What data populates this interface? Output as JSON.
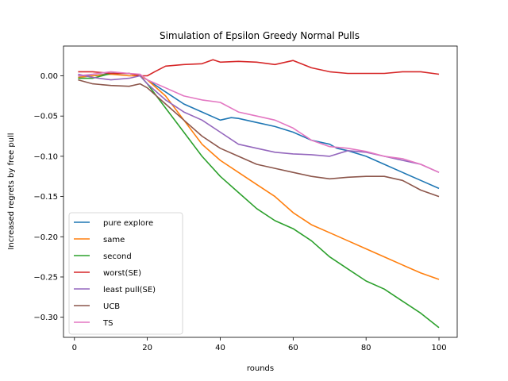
{
  "chart_data": {
    "type": "line",
    "title": "Simulation of Epsilon Greedy Normal Pulls",
    "xlabel": "rounds",
    "ylabel": "Increased regrets by free pull",
    "xlim": [
      -3,
      105
    ],
    "ylim": [
      -0.325,
      0.037
    ],
    "xticks": [
      0,
      20,
      40,
      60,
      80,
      100
    ],
    "yticks": [
      0.0,
      -0.05,
      -0.1,
      -0.15,
      -0.2,
      -0.25,
      -0.3
    ],
    "ytick_labels": [
      "0.00",
      "−0.05",
      "−0.10",
      "−0.15",
      "−0.20",
      "−0.25",
      "−0.30"
    ],
    "legend_position": "lower-left",
    "grid": false,
    "series": [
      {
        "name": "pure explore",
        "color": "#1f77b4",
        "x": [
          1,
          5,
          10,
          15,
          18,
          20,
          25,
          30,
          35,
          40,
          43,
          45,
          50,
          55,
          60,
          65,
          70,
          72,
          75,
          80,
          85,
          90,
          95,
          100
        ],
        "y": [
          0.0,
          0.0,
          0.003,
          0.003,
          0.0,
          -0.005,
          -0.02,
          -0.035,
          -0.045,
          -0.055,
          -0.052,
          -0.053,
          -0.058,
          -0.063,
          -0.07,
          -0.08,
          -0.085,
          -0.09,
          -0.093,
          -0.1,
          -0.11,
          -0.12,
          -0.13,
          -0.14
        ]
      },
      {
        "name": "same",
        "color": "#ff7f0e",
        "x": [
          1,
          5,
          10,
          15,
          18,
          20,
          25,
          30,
          35,
          40,
          45,
          50,
          55,
          60,
          65,
          70,
          75,
          80,
          85,
          90,
          95,
          100
        ],
        "y": [
          -0.002,
          0.0,
          0.002,
          0.0,
          0.0,
          -0.005,
          -0.025,
          -0.055,
          -0.085,
          -0.105,
          -0.12,
          -0.135,
          -0.15,
          -0.17,
          -0.185,
          -0.195,
          -0.205,
          -0.215,
          -0.225,
          -0.235,
          -0.245,
          -0.253
        ]
      },
      {
        "name": "second",
        "color": "#2ca02c",
        "x": [
          1,
          5,
          10,
          15,
          18,
          20,
          25,
          30,
          35,
          40,
          45,
          50,
          55,
          60,
          65,
          70,
          75,
          80,
          85,
          90,
          95,
          100
        ],
        "y": [
          -0.003,
          -0.003,
          0.003,
          0.003,
          0.0,
          -0.01,
          -0.04,
          -0.07,
          -0.1,
          -0.125,
          -0.145,
          -0.165,
          -0.18,
          -0.19,
          -0.205,
          -0.225,
          -0.24,
          -0.255,
          -0.265,
          -0.28,
          -0.295,
          -0.313
        ]
      },
      {
        "name": "worst(SE)",
        "color": "#d62728",
        "x": [
          1,
          5,
          10,
          15,
          18,
          20,
          22,
          25,
          30,
          35,
          38,
          40,
          45,
          50,
          55,
          60,
          65,
          70,
          75,
          80,
          85,
          90,
          95,
          100
        ],
        "y": [
          0.005,
          0.005,
          0.003,
          0.003,
          0.0,
          0.0,
          0.005,
          0.012,
          0.014,
          0.015,
          0.02,
          0.017,
          0.018,
          0.017,
          0.014,
          0.019,
          0.01,
          0.005,
          0.003,
          0.003,
          0.003,
          0.005,
          0.005,
          0.002
        ]
      },
      {
        "name": "least pull(SE)",
        "color": "#9467bd",
        "x": [
          1,
          5,
          10,
          15,
          18,
          20,
          25,
          30,
          35,
          40,
          45,
          50,
          55,
          60,
          65,
          70,
          75,
          80,
          85,
          90,
          95,
          100
        ],
        "y": [
          0.002,
          -0.002,
          -0.005,
          -0.003,
          0.0,
          -0.01,
          -0.03,
          -0.045,
          -0.055,
          -0.07,
          -0.085,
          -0.09,
          -0.095,
          -0.097,
          -0.098,
          -0.1,
          -0.093,
          -0.095,
          -0.1,
          -0.105,
          -0.11,
          -0.12
        ]
      },
      {
        "name": "UCB",
        "color": "#8c564b",
        "x": [
          1,
          5,
          10,
          15,
          18,
          20,
          25,
          30,
          35,
          40,
          45,
          50,
          55,
          60,
          65,
          70,
          75,
          80,
          85,
          90,
          95,
          100
        ],
        "y": [
          -0.005,
          -0.01,
          -0.012,
          -0.013,
          -0.01,
          -0.015,
          -0.035,
          -0.055,
          -0.075,
          -0.09,
          -0.1,
          -0.11,
          -0.115,
          -0.12,
          -0.125,
          -0.128,
          -0.126,
          -0.125,
          -0.125,
          -0.13,
          -0.142,
          -0.15
        ]
      },
      {
        "name": "TS",
        "color": "#e377c2",
        "x": [
          1,
          5,
          10,
          15,
          18,
          20,
          25,
          30,
          35,
          40,
          45,
          50,
          55,
          60,
          65,
          70,
          75,
          80,
          85,
          90,
          95,
          100
        ],
        "y": [
          0.0,
          0.002,
          0.005,
          0.003,
          0.002,
          -0.005,
          -0.015,
          -0.025,
          -0.03,
          -0.033,
          -0.045,
          -0.05,
          -0.055,
          -0.065,
          -0.08,
          -0.088,
          -0.09,
          -0.094,
          -0.1,
          -0.103,
          -0.11,
          -0.12
        ]
      }
    ]
  }
}
